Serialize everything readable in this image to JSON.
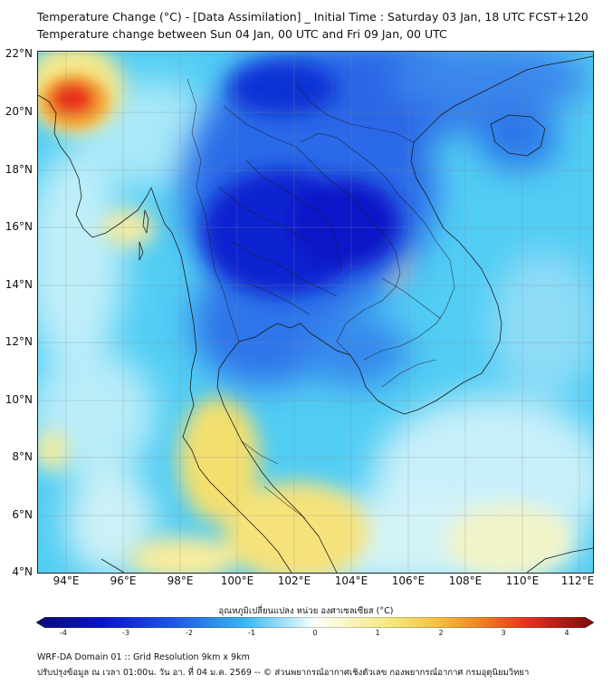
{
  "header": {
    "title_line1": "Temperature Change (°C) - [Data Assimilation] _ Initial Time : Saturday 03 Jan, 18 UTC FCST+120",
    "title_line2": "Temperature change between Sun 04 Jan, 00 UTC and Fri 09 Jan, 00 UTC"
  },
  "map": {
    "lat_labels": [
      "22°N",
      "20°N",
      "18°N",
      "16°N",
      "14°N",
      "12°N",
      "10°N",
      "8°N",
      "6°N",
      "4°N"
    ],
    "lon_labels": [
      "94°E",
      "96°E",
      "98°E",
      "100°E",
      "102°E",
      "104°E",
      "106°E",
      "108°E",
      "110°E",
      "112°E"
    ],
    "lat_range": [
      4,
      22
    ],
    "lon_range": [
      93,
      112.5
    ],
    "colors": {
      "very_cold": "#0a14c8",
      "cold": "#1e5ae6",
      "cool": "#38b8f2",
      "light": "#a5e6f8",
      "neutral": "#f5f8d8",
      "warm": "#f5e67a",
      "hot": "#e8301e"
    }
  },
  "colorbar": {
    "title": "อุณหภูมิเปลี่ยนแปลง หน่วย องศาเซลเซียส (°C)",
    "ticks": [
      "-4",
      "-3",
      "-2",
      "-1",
      "0",
      "1",
      "2",
      "3",
      "4"
    ],
    "range": [
      -4,
      4
    ]
  },
  "footer": {
    "line1": "WRF-DA Domain 01 :: Grid Resolution 9km x 9km",
    "line2": "ปรับปรุงข้อมูล ณ เวลา 01:00น. วัน อา. ที่ 04 ม.ค. 2569 -- © ส่วนพยากรณ์อากาศเชิงตัวเลข กองพยากรณ์อากาศ กรมอุตุนิยมวิทยา"
  }
}
